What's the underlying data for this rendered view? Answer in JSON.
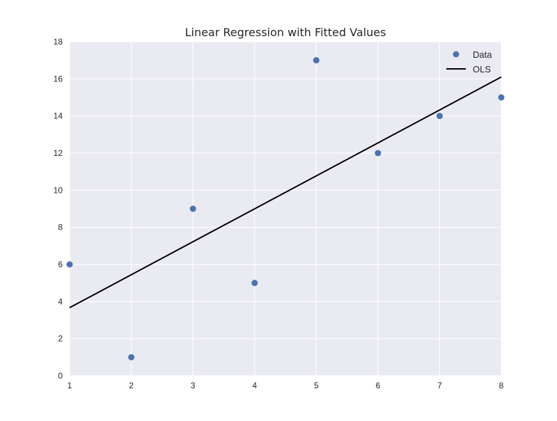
{
  "chart_data": {
    "type": "scatter",
    "title": "Linear Regression with Fitted Values",
    "xlabel": "",
    "ylabel": "",
    "xlim": [
      1,
      8
    ],
    "ylim": [
      0,
      18
    ],
    "xticks": [
      "1",
      "2",
      "3",
      "4",
      "5",
      "6",
      "7",
      "8"
    ],
    "yticks": [
      "0",
      "2",
      "4",
      "6",
      "8",
      "10",
      "12",
      "14",
      "16",
      "18"
    ],
    "grid": true,
    "legend_position": "top-right",
    "series": [
      {
        "name": "Data",
        "type": "scatter",
        "x": [
          1,
          2,
          3,
          4,
          5,
          6,
          7,
          8
        ],
        "y": [
          6,
          1,
          9,
          5,
          17,
          12,
          14,
          15
        ]
      },
      {
        "name": "OLS",
        "type": "line",
        "x": [
          1,
          8
        ],
        "y": [
          3.67,
          16.1
        ]
      }
    ],
    "colors": {
      "background": "#eaeaf2",
      "grid": "#ffffff",
      "points": "#4c72b0",
      "line": "#000000",
      "text": "#262626"
    }
  }
}
